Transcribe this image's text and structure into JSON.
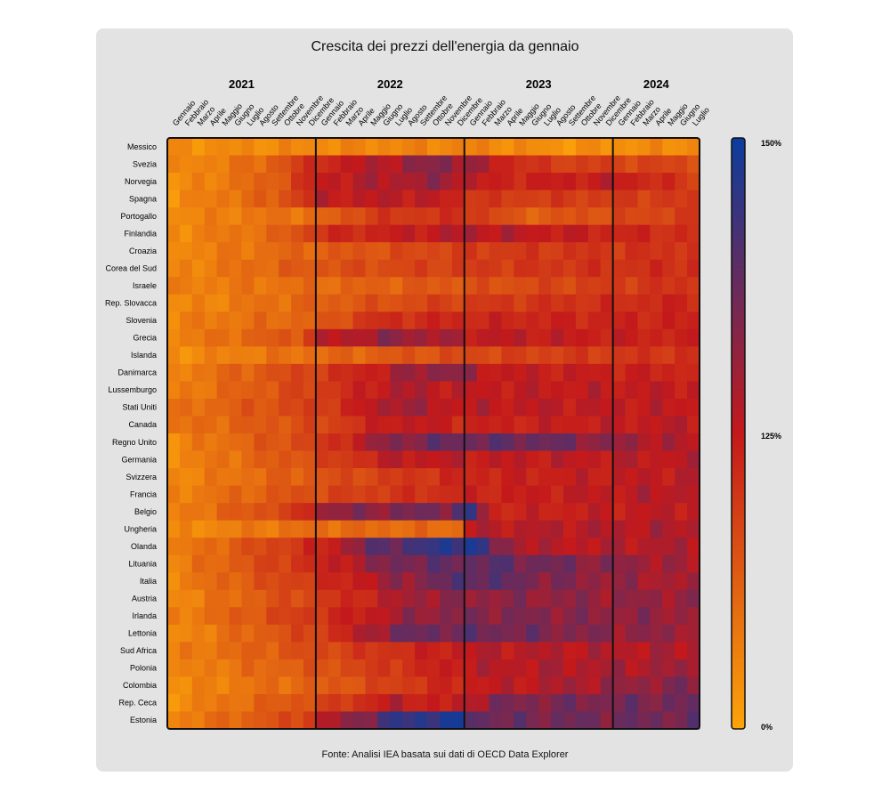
{
  "chart_data": {
    "type": "heatmap",
    "title": "Crescita dei prezzi dell'energia da gennaio",
    "source": "Fonte: Analisi IEA basata sui dati di OECD Data Explorer",
    "years": [
      {
        "label": "2021",
        "months": [
          "Gennaio",
          "Febbraio",
          "Marzo",
          "Aprile",
          "Maggio",
          "Giugno",
          "Luglio",
          "Agosto",
          "Settembre",
          "Ottobre",
          "Novembre",
          "Dicembre"
        ]
      },
      {
        "label": "2022",
        "months": [
          "Gennaio",
          "Febbraio",
          "Marzo",
          "Aprile",
          "Maggio",
          "Giugno",
          "Luglio",
          "Agosto",
          "Settembre",
          "Ottobre",
          "Novembre",
          "Dicembre"
        ]
      },
      {
        "label": "2023",
        "months": [
          "Gennaio",
          "Febbraio",
          "Marzo",
          "Aprile",
          "Maggio",
          "Giugno",
          "Luglio",
          "Agosto",
          "Settembre",
          "Ottobre",
          "Novembre",
          "Dicembre"
        ]
      },
      {
        "label": "2024",
        "months": [
          "Gennaio",
          "Febbraio",
          "Marzo",
          "Aprile",
          "Maggio",
          "Giugno",
          "Luglio"
        ]
      }
    ],
    "countries": [
      "Messico",
      "Svezia",
      "Norvegia",
      "Spagna",
      "Portogallo",
      "Finlandia",
      "Croazia",
      "Corea del Sud",
      "Israele",
      "Rep. Slovacca",
      "Slovenia",
      "Grecia",
      "Islanda",
      "Danimarca",
      "Lussemburgo",
      "Stati Uniti",
      "Canada",
      "Regno Unito",
      "Germania",
      "Svizzera",
      "Francia",
      "Belgio",
      "Ungheria",
      "Olanda",
      "Lituania",
      "Italia",
      "Austria",
      "Irlanda",
      "Lettonia",
      "Sud Africa",
      "Polonia",
      "Colombia",
      "Rep. Ceca",
      "Estonia"
    ],
    "colorbar": {
      "labels": [
        "150%",
        "125%",
        "0%"
      ],
      "colors": [
        "#0b3d9e",
        "#c4191b",
        "#fca40a"
      ]
    },
    "value_profiles": {
      "Messico": [
        [
          0,
          0.1
        ],
        [
          24,
          0.15
        ],
        [
          31,
          0.08
        ],
        [
          42,
          0.12
        ]
      ],
      "Svezia": [
        [
          0,
          0.1
        ],
        [
          7,
          0.25
        ],
        [
          12,
          0.55
        ],
        [
          22,
          0.75
        ],
        [
          30,
          0.45
        ],
        [
          42,
          0.4
        ]
      ],
      "Norvegia": [
        [
          0,
          0.08
        ],
        [
          8,
          0.3
        ],
        [
          12,
          0.6
        ],
        [
          22,
          0.7
        ],
        [
          26,
          0.55
        ],
        [
          36,
          0.6
        ],
        [
          42,
          0.45
        ]
      ],
      "Spagna": [
        [
          0,
          0.1
        ],
        [
          8,
          0.3
        ],
        [
          12,
          0.6
        ],
        [
          20,
          0.62
        ],
        [
          26,
          0.45
        ],
        [
          42,
          0.45
        ]
      ],
      "Portogallo": [
        [
          0,
          0.12
        ],
        [
          12,
          0.25
        ],
        [
          16,
          0.45
        ],
        [
          24,
          0.5
        ],
        [
          28,
          0.3
        ],
        [
          42,
          0.45
        ]
      ],
      "Finlandia": [
        [
          0,
          0.12
        ],
        [
          8,
          0.25
        ],
        [
          12,
          0.5
        ],
        [
          20,
          0.6
        ],
        [
          24,
          0.65
        ],
        [
          42,
          0.5
        ]
      ],
      "Croazia": [
        [
          0,
          0.12
        ],
        [
          12,
          0.3
        ],
        [
          24,
          0.45
        ],
        [
          42,
          0.5
        ]
      ],
      "Corea del Sud": [
        [
          0,
          0.12
        ],
        [
          12,
          0.35
        ],
        [
          24,
          0.45
        ],
        [
          42,
          0.52
        ]
      ],
      "Israele": [
        [
          0,
          0.15
        ],
        [
          12,
          0.25
        ],
        [
          24,
          0.35
        ],
        [
          36,
          0.45
        ],
        [
          42,
          0.5
        ]
      ],
      "Rep. Slovacca": [
        [
          0,
          0.1
        ],
        [
          12,
          0.3
        ],
        [
          24,
          0.45
        ],
        [
          42,
          0.55
        ]
      ],
      "Slovenia": [
        [
          0,
          0.15
        ],
        [
          12,
          0.3
        ],
        [
          16,
          0.5
        ],
        [
          24,
          0.55
        ],
        [
          42,
          0.55
        ]
      ],
      "Grecia": [
        [
          0,
          0.15
        ],
        [
          10,
          0.35
        ],
        [
          12,
          0.6
        ],
        [
          18,
          0.72
        ],
        [
          24,
          0.62
        ],
        [
          42,
          0.55
        ]
      ],
      "Islanda": [
        [
          0,
          0.1
        ],
        [
          12,
          0.25
        ],
        [
          24,
          0.4
        ],
        [
          42,
          0.5
        ]
      ],
      "Danimarca": [
        [
          0,
          0.15
        ],
        [
          12,
          0.45
        ],
        [
          18,
          0.65
        ],
        [
          22,
          0.75
        ],
        [
          26,
          0.6
        ],
        [
          42,
          0.55
        ]
      ],
      "Lussemburgo": [
        [
          0,
          0.15
        ],
        [
          12,
          0.45
        ],
        [
          18,
          0.65
        ],
        [
          24,
          0.6
        ],
        [
          42,
          0.6
        ]
      ],
      "Stati Uniti": [
        [
          0,
          0.2
        ],
        [
          12,
          0.45
        ],
        [
          18,
          0.7
        ],
        [
          22,
          0.62
        ],
        [
          42,
          0.6
        ]
      ],
      "Canada": [
        [
          0,
          0.2
        ],
        [
          12,
          0.4
        ],
        [
          18,
          0.62
        ],
        [
          24,
          0.55
        ],
        [
          42,
          0.62
        ]
      ],
      "Regno Unito": [
        [
          0,
          0.12
        ],
        [
          12,
          0.45
        ],
        [
          17,
          0.72
        ],
        [
          22,
          0.8
        ],
        [
          30,
          0.8
        ],
        [
          36,
          0.7
        ],
        [
          42,
          0.62
        ]
      ],
      "Germania": [
        [
          0,
          0.12
        ],
        [
          12,
          0.4
        ],
        [
          18,
          0.62
        ],
        [
          24,
          0.6
        ],
        [
          42,
          0.62
        ]
      ],
      "Svizzera": [
        [
          0,
          0.12
        ],
        [
          12,
          0.35
        ],
        [
          24,
          0.55
        ],
        [
          42,
          0.62
        ]
      ],
      "Francia": [
        [
          0,
          0.15
        ],
        [
          12,
          0.4
        ],
        [
          24,
          0.55
        ],
        [
          42,
          0.65
        ]
      ],
      "Belgio": [
        [
          0,
          0.15
        ],
        [
          10,
          0.45
        ],
        [
          12,
          0.7
        ],
        [
          22,
          0.78
        ],
        [
          24,
          0.88
        ],
        [
          26,
          0.55
        ],
        [
          42,
          0.62
        ]
      ],
      "Ungheria": [
        [
          0,
          0.1
        ],
        [
          12,
          0.25
        ],
        [
          23,
          0.25
        ],
        [
          24,
          0.62
        ],
        [
          42,
          0.65
        ]
      ],
      "Olanda": [
        [
          0,
          0.15
        ],
        [
          12,
          0.55
        ],
        [
          16,
          0.8
        ],
        [
          22,
          0.92
        ],
        [
          24,
          0.98
        ],
        [
          26,
          0.75
        ],
        [
          30,
          0.62
        ],
        [
          42,
          0.65
        ]
      ],
      "Lituania": [
        [
          0,
          0.15
        ],
        [
          12,
          0.55
        ],
        [
          18,
          0.78
        ],
        [
          26,
          0.82
        ],
        [
          36,
          0.72
        ],
        [
          42,
          0.65
        ]
      ],
      "Italia": [
        [
          0,
          0.15
        ],
        [
          12,
          0.5
        ],
        [
          18,
          0.7
        ],
        [
          24,
          0.85
        ],
        [
          30,
          0.75
        ],
        [
          42,
          0.65
        ]
      ],
      "Austria": [
        [
          0,
          0.12
        ],
        [
          12,
          0.45
        ],
        [
          20,
          0.7
        ],
        [
          26,
          0.72
        ],
        [
          42,
          0.7
        ]
      ],
      "Irlanda": [
        [
          0,
          0.15
        ],
        [
          12,
          0.5
        ],
        [
          20,
          0.72
        ],
        [
          26,
          0.75
        ],
        [
          42,
          0.7
        ]
      ],
      "Lettonia": [
        [
          0,
          0.1
        ],
        [
          12,
          0.45
        ],
        [
          18,
          0.78
        ],
        [
          24,
          0.8
        ],
        [
          36,
          0.72
        ],
        [
          42,
          0.7
        ]
      ],
      "Sud Africa": [
        [
          0,
          0.15
        ],
        [
          12,
          0.4
        ],
        [
          24,
          0.62
        ],
        [
          42,
          0.65
        ]
      ],
      "Polonia": [
        [
          0,
          0.12
        ],
        [
          12,
          0.35
        ],
        [
          24,
          0.62
        ],
        [
          42,
          0.68
        ]
      ],
      "Colombia": [
        [
          0,
          0.1
        ],
        [
          12,
          0.3
        ],
        [
          24,
          0.58
        ],
        [
          36,
          0.7
        ],
        [
          42,
          0.75
        ]
      ],
      "Rep. Ceca": [
        [
          0,
          0.1
        ],
        [
          12,
          0.4
        ],
        [
          18,
          0.62
        ],
        [
          22,
          0.55
        ],
        [
          26,
          0.75
        ],
        [
          42,
          0.78
        ]
      ],
      "Estonia": [
        [
          0,
          0.15
        ],
        [
          10,
          0.4
        ],
        [
          12,
          0.6
        ],
        [
          18,
          0.9
        ],
        [
          22,
          0.96
        ],
        [
          26,
          0.78
        ],
        [
          42,
          0.78
        ]
      ]
    }
  }
}
